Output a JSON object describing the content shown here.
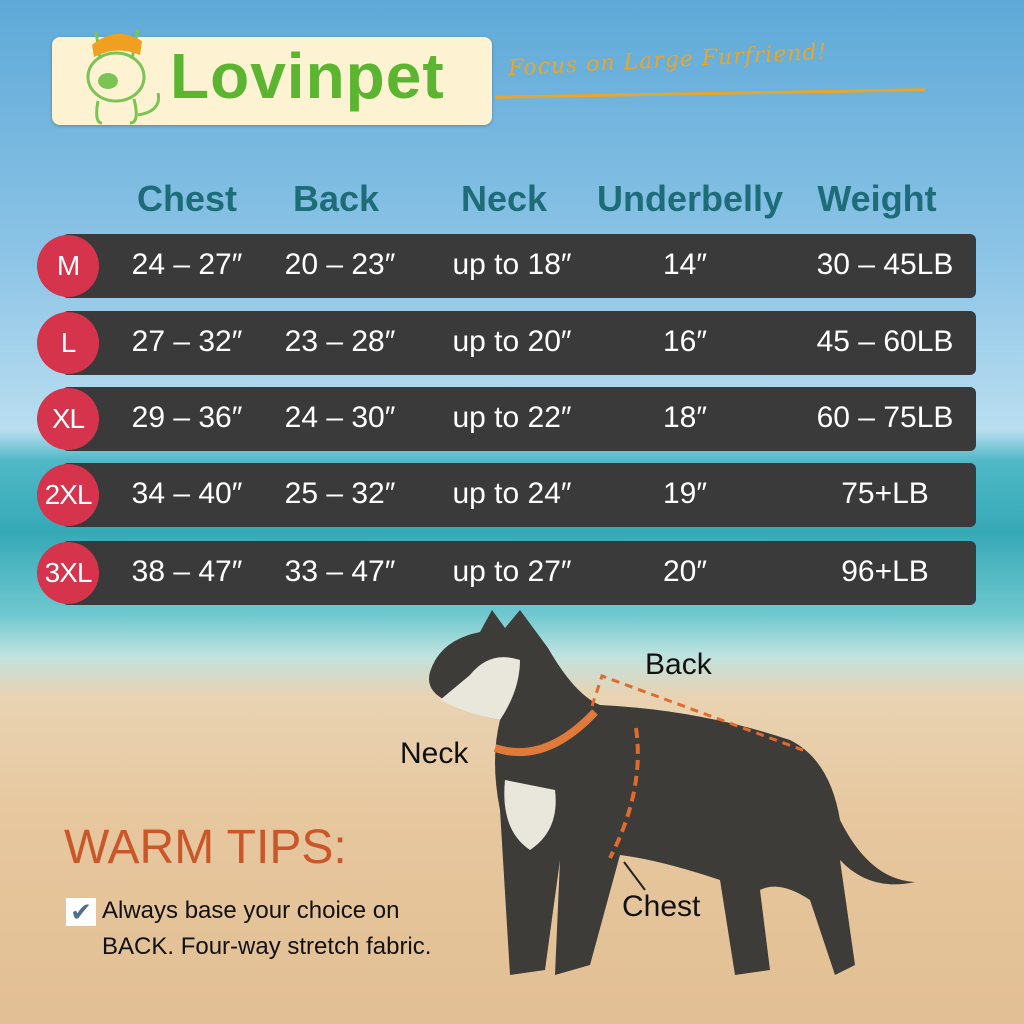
{
  "brand": {
    "name": "Lovinpet",
    "tagline": "Focus on Large Furfriend!",
    "color": "#5bb531",
    "accent": "#e8a62a"
  },
  "table": {
    "headers": [
      "Chest",
      "Back",
      "Neck",
      "Underbelly",
      "Weight"
    ],
    "rows": [
      {
        "size": "M",
        "cells": [
          "24 – 27″",
          "20 – 23″",
          "up to 18″",
          "14″",
          "30 – 45LB"
        ]
      },
      {
        "size": "L",
        "cells": [
          "27 – 32″",
          "23 – 28″",
          "up to 20″",
          "16″",
          "45 – 60LB"
        ]
      },
      {
        "size": "XL",
        "cells": [
          "29 – 36″",
          "24 – 30″",
          "up to 22″",
          "18″",
          "60 – 75LB"
        ]
      },
      {
        "size": "2XL",
        "cells": [
          "34 – 40″",
          "25 – 32″",
          "up to 24″",
          "19″",
          "75+LB"
        ]
      },
      {
        "size": "3XL",
        "cells": [
          "38 – 47″",
          "33 – 47″",
          "up to 27″",
          "20″",
          "96+LB"
        ]
      }
    ],
    "header_color": "#1d6c78",
    "badge_color": "#d5344c",
    "row_color": "#3a3a3a"
  },
  "diagram": {
    "back": "Back",
    "neck": "Neck",
    "chest": "Chest"
  },
  "tips": {
    "title": "WARM TIPS:",
    "line1": "Always base your choice on",
    "line2_bold": "BACK.",
    "line2": " Four-way stretch fabric.",
    "icon": "check-box-icon"
  }
}
